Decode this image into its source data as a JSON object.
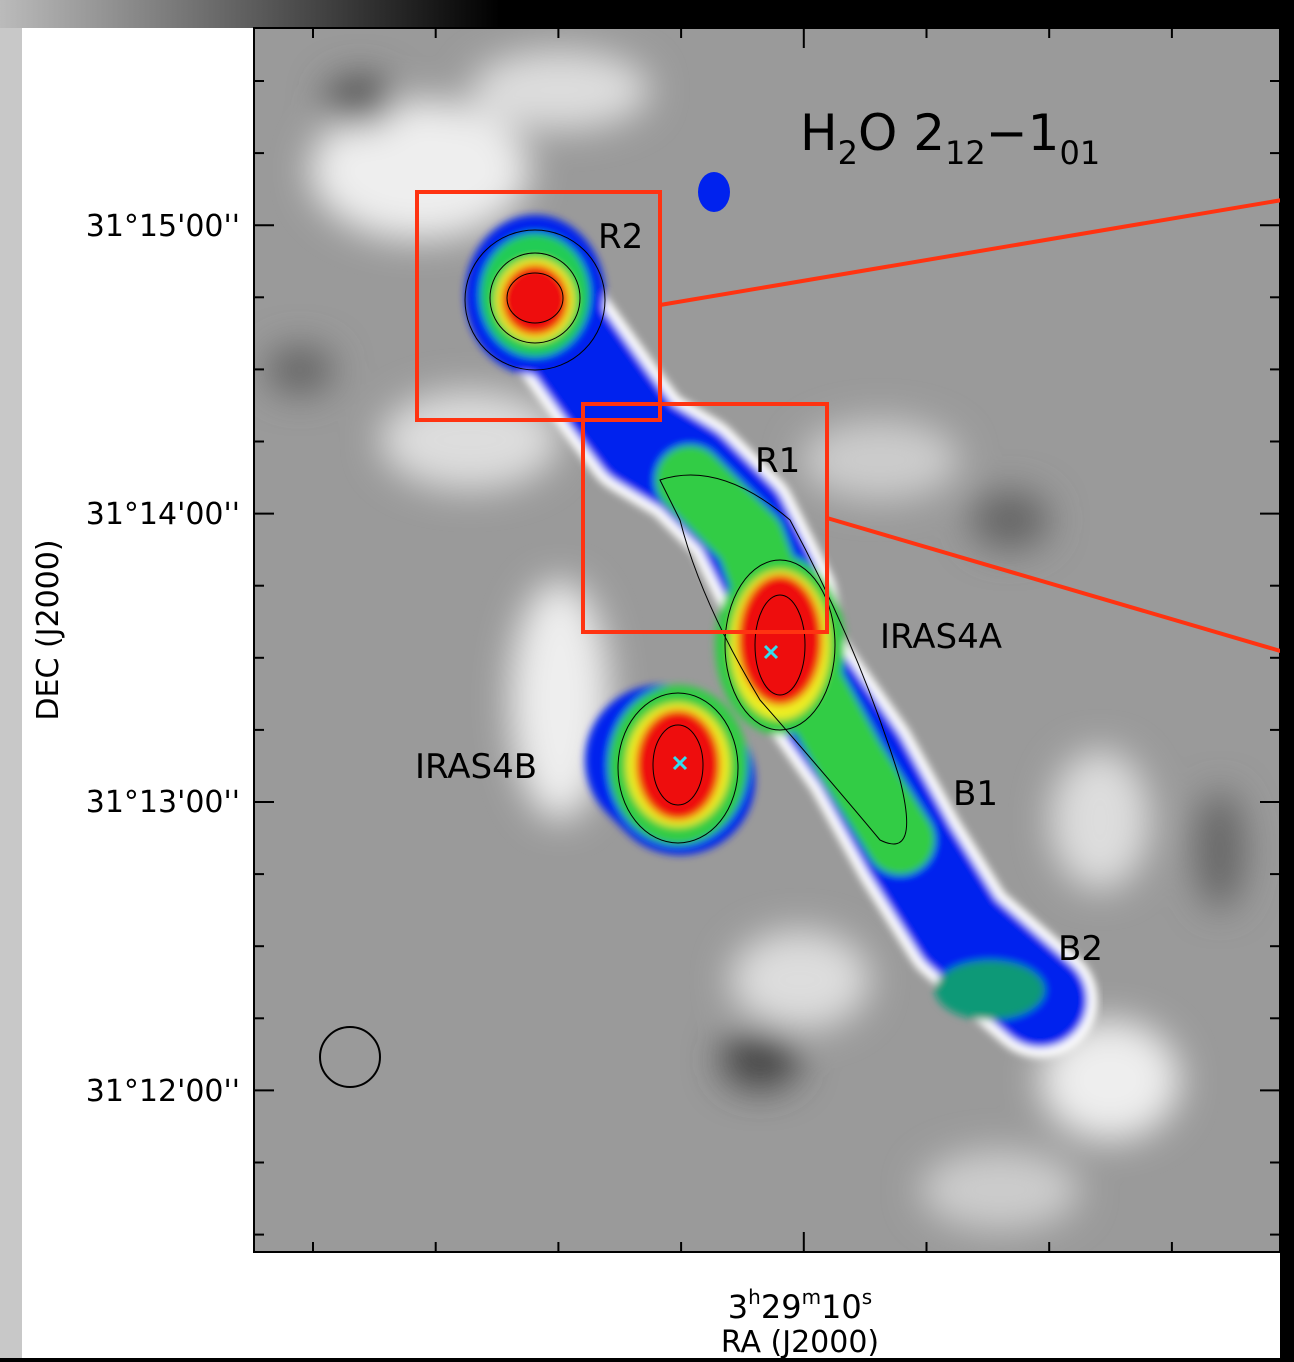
{
  "line_label": {
    "parts": [
      "H",
      "2",
      "O 2",
      "12",
      "−1",
      "01"
    ]
  },
  "y_axis": {
    "label": "DEC (J2000)",
    "ticks": [
      "31°15'00''",
      "31°14'00''",
      "31°13'00''",
      "31°12'00''"
    ]
  },
  "x_axis": {
    "label": "RA (J2000)",
    "tick": {
      "parts": [
        "3",
        "h",
        "29",
        "m",
        "10",
        "s"
      ]
    }
  },
  "regions": [
    "R2",
    "R1",
    "IRAS4A",
    "IRAS4B",
    "B1",
    "B2"
  ]
}
